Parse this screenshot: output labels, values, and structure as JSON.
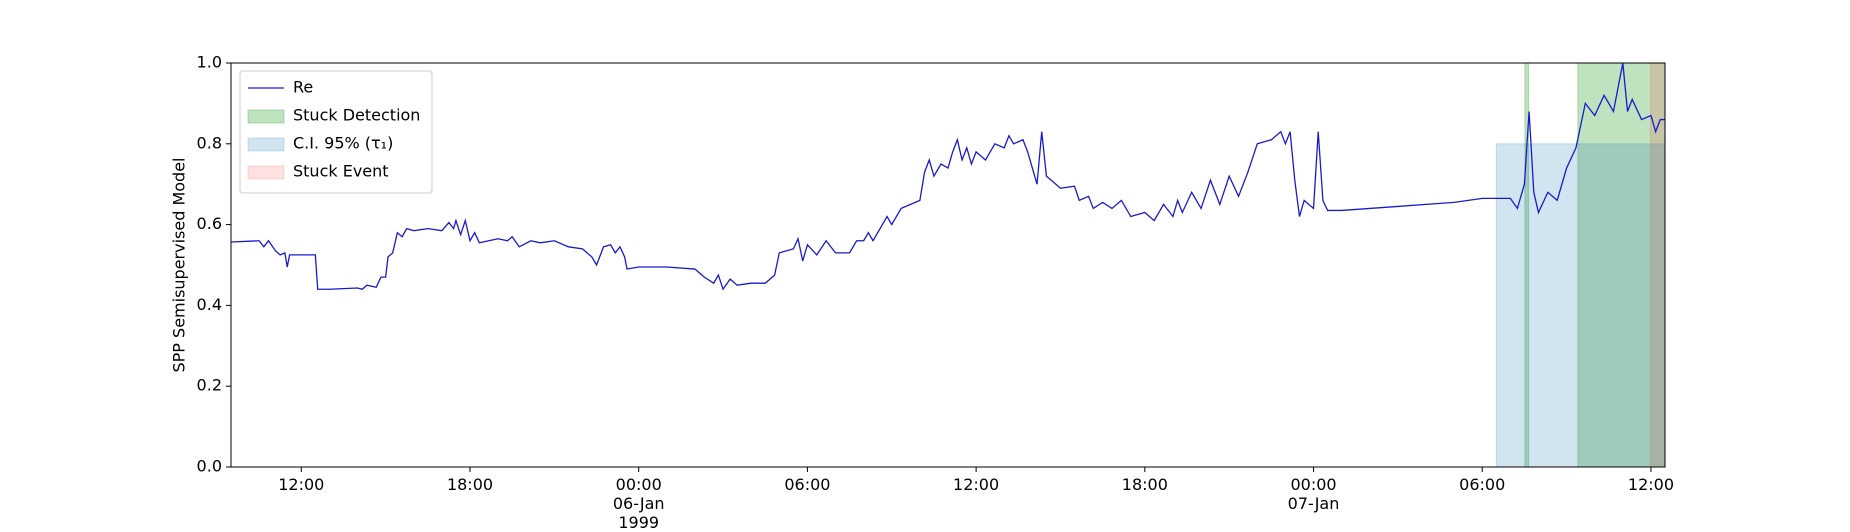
{
  "chart_data": {
    "type": "line",
    "ylabel": "SPP Semisupervised Model",
    "xlim": [
      "1999-01-05 09:30",
      "1999-01-07 12:30"
    ],
    "ylim": [
      0,
      1
    ],
    "yticks": [
      {
        "value": 0,
        "label": "0.0"
      },
      0.2,
      0.4,
      0.6,
      0.8,
      {
        "value": 1,
        "label": "1.0"
      }
    ],
    "xticks": [
      {
        "value": "1999-01-05 12:00",
        "label": "12:00"
      },
      {
        "value": "1999-01-05 18:00",
        "label": "18:00"
      },
      {
        "value": "1999-01-06 00:00",
        "label": "00:00\n06-Jan\n1999"
      },
      {
        "value": "1999-01-06 06:00",
        "label": "06:00"
      },
      {
        "value": "1999-01-06 12:00",
        "label": "12:00"
      },
      {
        "value": "1999-01-06 18:00",
        "label": "18:00"
      },
      {
        "value": "1999-01-07 00:00",
        "label": "00:00\n07-Jan"
      },
      {
        "value": "1999-01-07 06:00",
        "label": "06:00"
      },
      {
        "value": "1999-01-07 12:00",
        "label": "12:00"
      }
    ],
    "legend": "upper left",
    "x": [
      "1999-01-05 09:30",
      "1999-01-05 10:30",
      "1999-01-05 10:40",
      "1999-01-05 10:50",
      "1999-01-05 11:05",
      "1999-01-05 11:15",
      "1999-01-05 11:25",
      "1999-01-05 11:30",
      "1999-01-05 11:35",
      "1999-01-05 12:00",
      "1999-01-05 12:30",
      "1999-01-05 12:35",
      "1999-01-05 13:00",
      "1999-01-05 14:00",
      "1999-01-05 14:10",
      "1999-01-05 14:20",
      "1999-01-05 14:40",
      "1999-01-05 14:50",
      "1999-01-05 15:00",
      "1999-01-05 15:05",
      "1999-01-05 15:15",
      "1999-01-05 15:25",
      "1999-01-05 15:35",
      "1999-01-05 15:45",
      "1999-01-05 16:00",
      "1999-01-05 16:30",
      "1999-01-05 17:00",
      "1999-01-05 17:15",
      "1999-01-05 17:25",
      "1999-01-05 17:30",
      "1999-01-05 17:40",
      "1999-01-05 17:50",
      "1999-01-05 18:00",
      "1999-01-05 18:10",
      "1999-01-05 18:20",
      "1999-01-05 18:40",
      "1999-01-05 19:00",
      "1999-01-05 19:20",
      "1999-01-05 19:30",
      "1999-01-05 19:45",
      "1999-01-05 20:10",
      "1999-01-05 20:30",
      "1999-01-05 21:00",
      "1999-01-05 21:30",
      "1999-01-05 22:00",
      "1999-01-05 22:20",
      "1999-01-05 22:30",
      "1999-01-05 22:45",
      "1999-01-05 23:00",
      "1999-01-05 23:10",
      "1999-01-05 23:20",
      "1999-01-05 23:30",
      "1999-01-05 23:35",
      "1999-01-06 00:00",
      "1999-01-06 01:00",
      "1999-01-06 02:00",
      "1999-01-06 02:20",
      "1999-01-06 02:40",
      "1999-01-06 02:50",
      "1999-01-06 03:00",
      "1999-01-06 03:15",
      "1999-01-06 03:30",
      "1999-01-06 04:00",
      "1999-01-06 04:30",
      "1999-01-06 04:50",
      "1999-01-06 05:00",
      "1999-01-06 05:30",
      "1999-01-06 05:40",
      "1999-01-06 05:50",
      "1999-01-06 06:00",
      "1999-01-06 06:20",
      "1999-01-06 06:40",
      "1999-01-06 07:00",
      "1999-01-06 07:30",
      "1999-01-06 07:45",
      "1999-01-06 08:00",
      "1999-01-06 08:10",
      "1999-01-06 08:20",
      "1999-01-06 08:40",
      "1999-01-06 08:50",
      "1999-01-06 09:00",
      "1999-01-06 09:20",
      "1999-01-06 09:40",
      "1999-01-06 10:00",
      "1999-01-06 10:10",
      "1999-01-06 10:20",
      "1999-01-06 10:30",
      "1999-01-06 10:45",
      "1999-01-06 11:00",
      "1999-01-06 11:10",
      "1999-01-06 11:20",
      "1999-01-06 11:30",
      "1999-01-06 11:40",
      "1999-01-06 11:50",
      "1999-01-06 12:00",
      "1999-01-06 12:20",
      "1999-01-06 12:40",
      "1999-01-06 13:00",
      "1999-01-06 13:10",
      "1999-01-06 13:20",
      "1999-01-06 13:40",
      "1999-01-06 13:50",
      "1999-01-06 14:00",
      "1999-01-06 14:10",
      "1999-01-06 14:20",
      "1999-01-06 14:30",
      "1999-01-06 14:40",
      "1999-01-06 15:00",
      "1999-01-06 15:30",
      "1999-01-06 15:40",
      "1999-01-06 16:00",
      "1999-01-06 16:10",
      "1999-01-06 16:30",
      "1999-01-06 16:50",
      "1999-01-06 17:10",
      "1999-01-06 17:30",
      "1999-01-06 18:00",
      "1999-01-06 18:20",
      "1999-01-06 18:40",
      "1999-01-06 19:00",
      "1999-01-06 19:10",
      "1999-01-06 19:20",
      "1999-01-06 19:40",
      "1999-01-06 20:00",
      "1999-01-06 20:20",
      "1999-01-06 20:40",
      "1999-01-06 21:00",
      "1999-01-06 21:20",
      "1999-01-06 21:40",
      "1999-01-06 22:00",
      "1999-01-06 22:30",
      "1999-01-06 22:50",
      "1999-01-06 23:00",
      "1999-01-06 23:10",
      "1999-01-06 23:20",
      "1999-01-06 23:30",
      "1999-01-06 23:40",
      "1999-01-07 00:00",
      "1999-01-07 00:10",
      "1999-01-07 00:20",
      "1999-01-07 00:30",
      "1999-01-07 01:00",
      "1999-01-07 03:00",
      "1999-01-07 04:00",
      "1999-01-07 05:00",
      "1999-01-07 06:00",
      "1999-01-07 07:00",
      "1999-01-07 07:15",
      "1999-01-07 07:30",
      "1999-01-07 07:40",
      "1999-01-07 07:50",
      "1999-01-07 08:00",
      "1999-01-07 08:20",
      "1999-01-07 08:40",
      "1999-01-07 09:00",
      "1999-01-07 09:20",
      "1999-01-07 09:40",
      "1999-01-07 10:00",
      "1999-01-07 10:20",
      "1999-01-07 10:40",
      "1999-01-07 11:00",
      "1999-01-07 11:10",
      "1999-01-07 11:20",
      "1999-01-07 11:40",
      "1999-01-07 12:00",
      "1999-01-07 12:10",
      "1999-01-07 12:20",
      "1999-01-07 12:30"
    ],
    "series": [
      {
        "name": "Re",
        "color": "#1a1acd",
        "values": [
          0.557,
          0.56,
          0.545,
          0.56,
          0.535,
          0.525,
          0.53,
          0.495,
          0.525,
          0.525,
          0.525,
          0.44,
          0.44,
          0.443,
          0.44,
          0.45,
          0.445,
          0.47,
          0.47,
          0.52,
          0.53,
          0.58,
          0.57,
          0.59,
          0.585,
          0.59,
          0.585,
          0.605,
          0.59,
          0.61,
          0.575,
          0.61,
          0.56,
          0.58,
          0.555,
          0.56,
          0.565,
          0.56,
          0.57,
          0.545,
          0.56,
          0.555,
          0.56,
          0.545,
          0.54,
          0.52,
          0.5,
          0.545,
          0.55,
          0.53,
          0.545,
          0.52,
          0.49,
          0.495,
          0.495,
          0.49,
          0.47,
          0.455,
          0.475,
          0.44,
          0.465,
          0.45,
          0.455,
          0.455,
          0.475,
          0.53,
          0.54,
          0.565,
          0.51,
          0.55,
          0.525,
          0.56,
          0.53,
          0.53,
          0.56,
          0.56,
          0.58,
          0.56,
          0.6,
          0.62,
          0.6,
          0.64,
          0.65,
          0.66,
          0.73,
          0.76,
          0.72,
          0.75,
          0.74,
          0.78,
          0.81,
          0.76,
          0.79,
          0.75,
          0.78,
          0.76,
          0.8,
          0.79,
          0.82,
          0.8,
          0.81,
          0.78,
          0.74,
          0.7,
          0.83,
          0.72,
          0.71,
          0.69,
          0.695,
          0.66,
          0.67,
          0.64,
          0.655,
          0.64,
          0.66,
          0.62,
          0.63,
          0.61,
          0.65,
          0.62,
          0.66,
          0.63,
          0.68,
          0.64,
          0.71,
          0.65,
          0.72,
          0.67,
          0.73,
          0.8,
          0.81,
          0.83,
          0.8,
          0.83,
          0.71,
          0.62,
          0.66,
          0.64,
          0.83,
          0.66,
          0.635,
          0.635,
          0.645,
          0.65,
          0.655,
          0.665,
          0.665,
          0.64,
          0.7,
          0.88,
          0.68,
          0.63,
          0.68,
          0.66,
          0.74,
          0.79,
          0.9,
          0.87,
          0.92,
          0.88,
          1.0,
          0.88,
          0.91,
          0.86,
          0.87,
          0.83,
          0.86,
          0.86
        ]
      }
    ],
    "spans": [
      {
        "name": "Stuck Detection",
        "color": "#2ca02c",
        "alpha": 0.3,
        "ranges": [
          {
            "x": [
              "1999-01-07 07:31",
              "1999-01-07 07:39"
            ],
            "y": [
              0,
              1
            ]
          },
          {
            "x": [
              "1999-01-07 09:24",
              "1999-01-07 12:30"
            ],
            "y": [
              0,
              1
            ]
          }
        ]
      },
      {
        "name": "C.I. 95% (τ₁)",
        "color": "#1f77b4",
        "alpha": 0.2,
        "ranges": [
          {
            "x": [
              "1999-01-07 06:30",
              "1999-01-07 12:30"
            ],
            "y": [
              0,
              0.8
            ]
          }
        ]
      },
      {
        "name": "Stuck Event",
        "color": "#ff0000",
        "alpha": 0.12,
        "ranges": [
          {
            "x": [
              "1999-01-07 11:59",
              "1999-01-07 12:30"
            ],
            "y": [
              0,
              1
            ]
          }
        ]
      }
    ]
  }
}
